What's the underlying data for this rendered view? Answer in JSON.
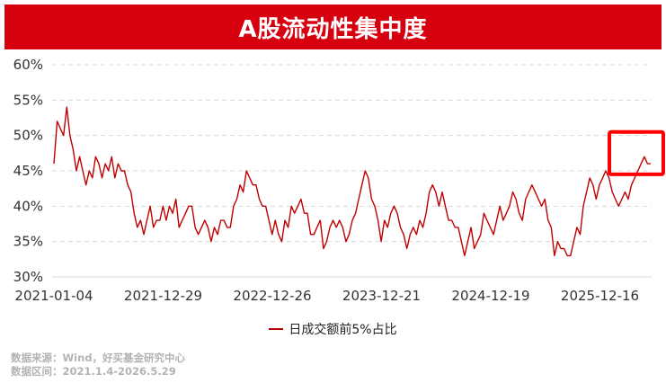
{
  "title": "A股流动性集中度",
  "colors": {
    "title_bg": "#d7000f",
    "title_text": "#ffffff",
    "line": "#c00000",
    "highlight": "#ff0000",
    "grid": "#d9d9d9"
  },
  "source": {
    "line1": "数据来源：Wind，好买基金研究中心",
    "line2": "数据区间：2021.1.4-2026.5.29"
  },
  "chart_data": {
    "type": "line",
    "title": "A股流动性集中度",
    "ylim": [
      30,
      60
    ],
    "y_ticks": [
      "30%",
      "35%",
      "40%",
      "45%",
      "50%",
      "55%",
      "60%"
    ],
    "x_ticks": [
      "2021-01-04",
      "2021-12-29",
      "2022-12-26",
      "2023-12-21",
      "2024-12-19",
      "2025-12-16"
    ],
    "grid": "horizontal dashed",
    "legend_position": "bottom",
    "highlight_box": "last portion of the series, around 44%-50%",
    "series": [
      {
        "name": "日成交额前5%占比",
        "values": [
          46,
          52,
          51,
          50,
          54,
          50,
          48,
          45,
          47,
          45,
          43,
          45,
          44,
          47,
          46,
          44,
          46,
          45,
          47,
          44,
          46,
          45,
          45,
          43,
          42,
          39,
          37,
          38,
          36,
          38,
          40,
          37,
          38,
          38,
          40,
          38,
          40,
          39,
          41,
          37,
          38,
          39,
          40,
          40,
          37,
          36,
          37,
          38,
          37,
          35,
          37,
          36,
          38,
          38,
          37,
          37,
          40,
          41,
          43,
          42,
          45,
          44,
          43,
          43,
          41,
          40,
          40,
          38,
          36,
          38,
          36,
          35,
          38,
          37,
          40,
          39,
          40,
          41,
          39,
          39,
          36,
          36,
          37,
          38,
          34,
          35,
          37,
          38,
          37,
          38,
          37,
          35,
          36,
          38,
          39,
          41,
          43,
          45,
          44,
          41,
          40,
          38,
          35,
          38,
          37,
          39,
          40,
          39,
          37,
          36,
          34,
          36,
          37,
          36,
          38,
          37,
          39,
          42,
          43,
          42,
          40,
          42,
          40,
          38,
          38,
          37,
          37,
          35,
          33,
          35,
          37,
          34,
          35,
          36,
          39,
          38,
          37,
          36,
          38,
          40,
          38,
          39,
          40,
          42,
          41,
          39,
          38,
          41,
          42,
          43,
          42,
          41,
          40,
          41,
          38,
          37,
          33,
          35,
          34,
          34,
          33,
          33,
          35,
          37,
          36,
          40,
          42,
          44,
          43,
          41,
          43,
          44,
          45,
          44,
          42,
          41,
          40,
          41,
          42,
          41,
          43,
          44,
          45,
          46,
          47,
          46,
          46
        ],
        "note": "daily series sampled at ~7-trading-day intervals, values in %"
      }
    ]
  }
}
